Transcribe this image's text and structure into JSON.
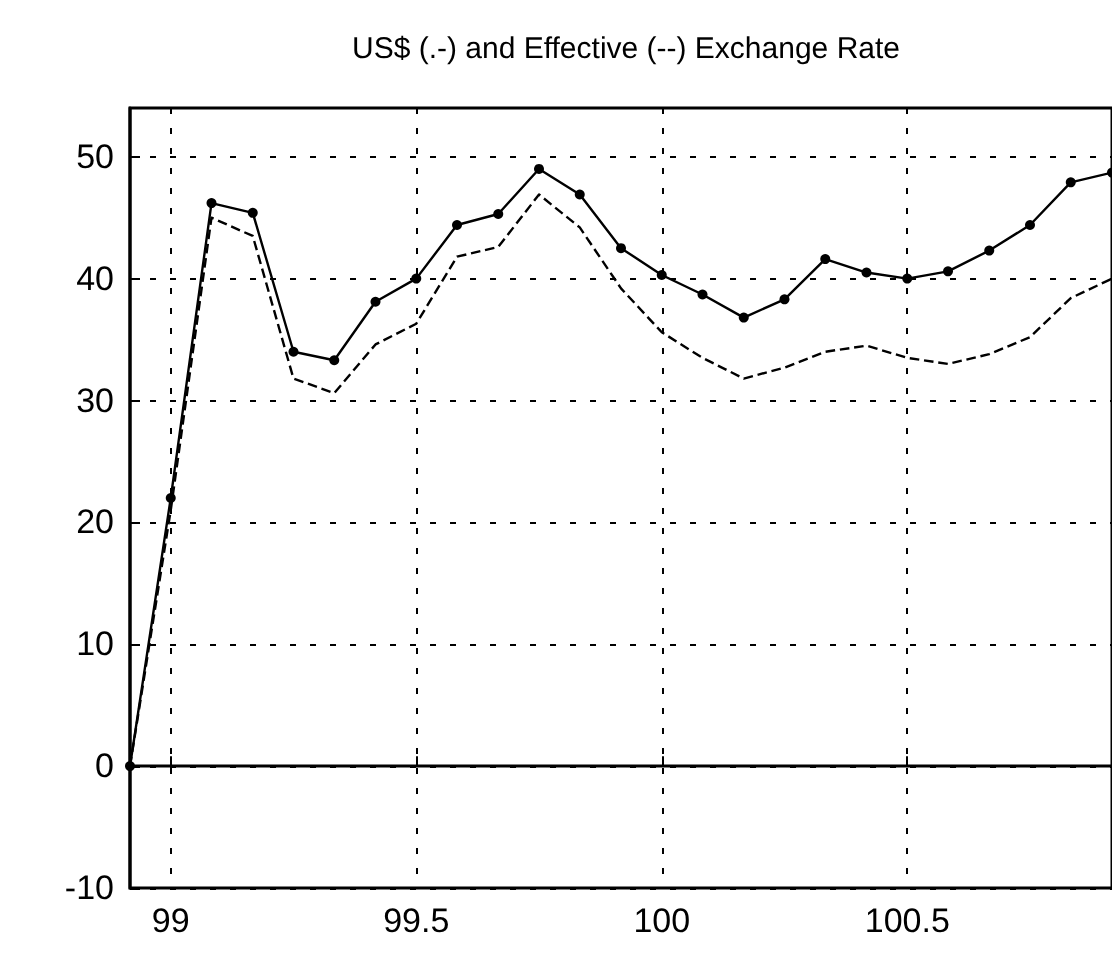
{
  "chart_data": {
    "type": "line",
    "title": "US$ (.-) and Effective (--) Exchange Rate",
    "x": [
      98.917,
      99,
      99.083,
      99.167,
      99.25,
      99.333,
      99.417,
      99.5,
      99.583,
      99.667,
      99.75,
      99.833,
      99.917,
      100,
      100.083,
      100.167,
      100.25,
      100.333,
      100.417,
      100.5,
      100.583,
      100.667,
      100.75,
      100.833,
      100.917
    ],
    "series": [
      {
        "color": "#000000",
        "marker": "circle",
        "line_style": "solid",
        "values": [
          0,
          22,
          46.2,
          45.4,
          34,
          33.3,
          38.1,
          40,
          44.4,
          45.3,
          49,
          46.9,
          42.5,
          40.3,
          38.7,
          36.8,
          38.3,
          41.6,
          40.5,
          40,
          40.6,
          42.3,
          44.4,
          47.9,
          48.7
        ]
      },
      {
        "color": "#000000",
        "marker": "none",
        "line_style": "dashed",
        "values": [
          0,
          21,
          45,
          43.5,
          31.8,
          30.6,
          34.6,
          36.3,
          41.8,
          42.6,
          46.9,
          44.2,
          39.2,
          35.6,
          33.5,
          31.8,
          32.7,
          34,
          34.5,
          33.5,
          33,
          33.8,
          35.2,
          38.4,
          40
        ]
      }
    ],
    "xlim": [
      98.917,
      100.917
    ],
    "xticks": [
      99,
      99.5,
      100,
      100.5
    ],
    "ylim": [
      -10,
      54
    ],
    "yticks": [
      -10,
      0,
      10,
      20,
      30,
      40,
      50
    ],
    "grid": true
  }
}
